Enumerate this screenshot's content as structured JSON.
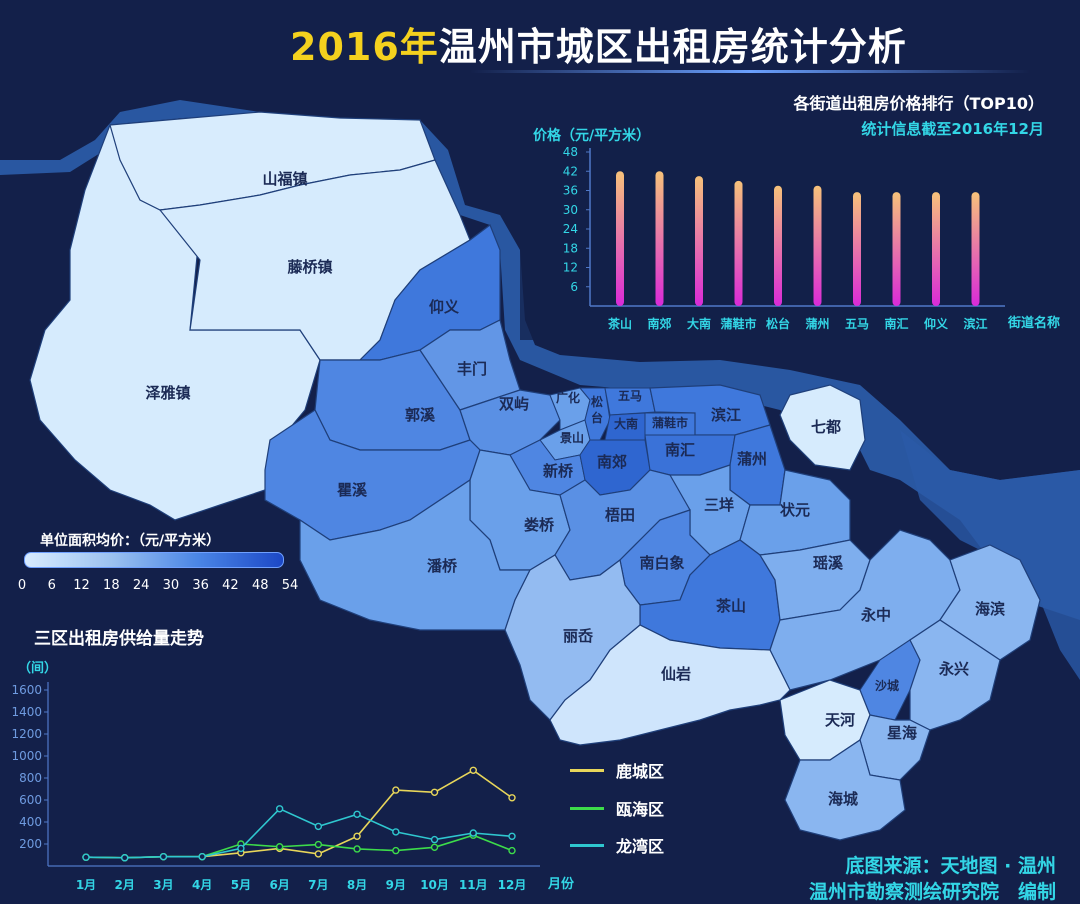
{
  "header": {
    "title_year": "2016年",
    "title_rest": "温州市城区出租房统计分析",
    "subtitle": "各街道出租房价格排行（TOP10）",
    "stat_date": "统计信息截至2016年12月"
  },
  "map": {
    "legend_title": "单位面积均价：（元/平方米）",
    "legend_ticks": [
      "0",
      "6",
      "12",
      "18",
      "24",
      "30",
      "36",
      "42",
      "48",
      "54"
    ],
    "regions": [
      {
        "name": "山福镇",
        "level": 0.05
      },
      {
        "name": "藤桥镇",
        "level": 0.05
      },
      {
        "name": "泽雅镇",
        "level": 0.05
      },
      {
        "name": "仰义",
        "level": 0.75
      },
      {
        "name": "丰门",
        "level": 0.5
      },
      {
        "name": "郭溪",
        "level": 0.55
      },
      {
        "name": "双屿",
        "level": 0.55
      },
      {
        "name": "广化",
        "level": 0.5
      },
      {
        "name": "松台",
        "level": 0.75
      },
      {
        "name": "五马",
        "level": 0.75
      },
      {
        "name": "大南",
        "level": 0.8
      },
      {
        "name": "蒲鞋市",
        "level": 0.75
      },
      {
        "name": "滨江",
        "level": 0.75
      },
      {
        "name": "景山",
        "level": 0.5
      },
      {
        "name": "新桥",
        "level": 0.55
      },
      {
        "name": "南郊",
        "level": 0.8
      },
      {
        "name": "南汇",
        "level": 0.7
      },
      {
        "name": "蒲州",
        "level": 0.75
      },
      {
        "name": "瞿溪",
        "level": 0.55
      },
      {
        "name": "娄桥",
        "level": 0.45
      },
      {
        "name": "梧田",
        "level": 0.5
      },
      {
        "name": "三垟",
        "level": 0.45
      },
      {
        "name": "状元",
        "level": 0.45
      },
      {
        "name": "南白象",
        "level": 0.55
      },
      {
        "name": "茶山",
        "level": 0.75
      },
      {
        "name": "瑶溪",
        "level": 0.4
      },
      {
        "name": "潘桥",
        "level": 0.45
      },
      {
        "name": "丽岙",
        "level": 0.3
      },
      {
        "name": "永中",
        "level": 0.35
      },
      {
        "name": "海滨",
        "level": 0.3
      },
      {
        "name": "沙城",
        "level": 0.6
      },
      {
        "name": "永兴",
        "level": 0.3
      },
      {
        "name": "仙岩",
        "level": 0.1
      },
      {
        "name": "天河",
        "level": 0.1
      },
      {
        "name": "星海",
        "level": 0.3
      },
      {
        "name": "海城",
        "level": 0.3
      },
      {
        "name": "七都",
        "level": 0.05
      }
    ]
  },
  "chart_data": [
    {
      "type": "bar",
      "title": "各街道出租房价格排行（TOP10）",
      "ylabel": "价格（元/平方米）",
      "xlabel": "街道名称",
      "categories": [
        "茶山",
        "南郊",
        "大南",
        "蒲鞋市",
        "松台",
        "蒲州",
        "五马",
        "南汇",
        "仰义",
        "滨江"
      ],
      "values": [
        42,
        42,
        40.5,
        39,
        37.5,
        37.5,
        35.5,
        35.5,
        35.5,
        35.5
      ],
      "ylim": [
        0,
        48
      ],
      "yticks": [
        "6",
        "12",
        "18",
        "24",
        "30",
        "36",
        "42",
        "48"
      ]
    },
    {
      "type": "line",
      "title": "三区出租房供给量走势",
      "ylabel": "（间）",
      "xlabel": "月份",
      "x": [
        "1月",
        "2月",
        "3月",
        "4月",
        "5月",
        "6月",
        "7月",
        "8月",
        "9月",
        "10月",
        "11月",
        "12月"
      ],
      "ylim": [
        0,
        1600
      ],
      "yticks": [
        "200",
        "400",
        "600",
        "800",
        "1000",
        "1200",
        "1400",
        "1600"
      ],
      "series": [
        {
          "name": "鹿城区",
          "color": "#e8d65a",
          "values": [
            80,
            75,
            85,
            85,
            120,
            160,
            110,
            270,
            690,
            670,
            870,
            620
          ]
        },
        {
          "name": "瓯海区",
          "color": "#3ddc4a",
          "values": [
            80,
            75,
            85,
            85,
            200,
            175,
            195,
            155,
            140,
            170,
            280,
            140
          ]
        },
        {
          "name": "龙湾区",
          "color": "#2fc7cf",
          "values": [
            80,
            75,
            85,
            85,
            160,
            520,
            360,
            470,
            310,
            240,
            300,
            270
          ]
        }
      ]
    }
  ],
  "credits": {
    "line1": "底图来源：天地图 · 温州",
    "line2": "温州市勘察测绘研究院　编制"
  }
}
